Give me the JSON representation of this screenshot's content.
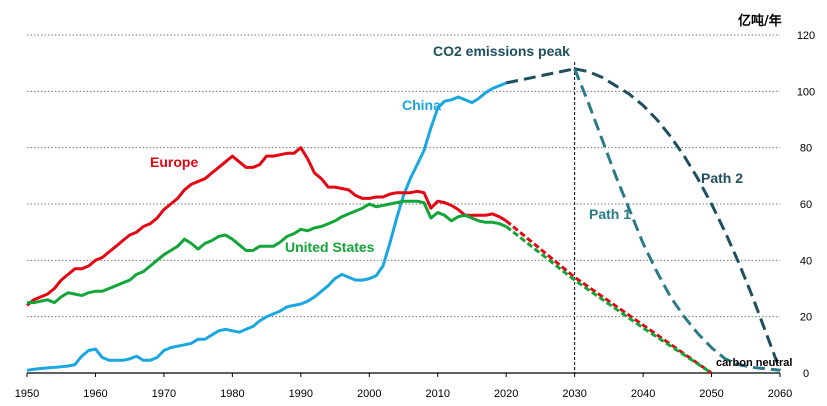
{
  "chart_data": {
    "type": "line",
    "title": "",
    "xlabel": "",
    "ylabel": "亿吨/年",
    "xlim": [
      1950,
      2060
    ],
    "ylim": [
      0,
      120
    ],
    "x_ticks": [
      1950,
      1960,
      1970,
      1980,
      1990,
      2000,
      2010,
      2020,
      2030,
      2040,
      2050,
      2060
    ],
    "y_ticks": [
      0,
      20,
      40,
      60,
      80,
      100,
      120
    ],
    "grid": "horizontal",
    "colors": {
      "china": "#1aa7e0",
      "europe": "#e30613",
      "us": "#13a538",
      "projection": "#1f4e5f",
      "path1": "#2b7a8a"
    },
    "series": [
      {
        "name": "China",
        "key": "china",
        "x": [
          1950,
          1951,
          1952,
          1953,
          1954,
          1955,
          1956,
          1957,
          1958,
          1959,
          1960,
          1961,
          1962,
          1963,
          1964,
          1965,
          1966,
          1967,
          1968,
          1969,
          1970,
          1971,
          1972,
          1973,
          1974,
          1975,
          1976,
          1977,
          1978,
          1979,
          1980,
          1981,
          1982,
          1983,
          1984,
          1985,
          1986,
          1987,
          1988,
          1989,
          1990,
          1991,
          1992,
          1993,
          1994,
          1995,
          1996,
          1997,
          1998,
          1999,
          2000,
          2001,
          2002,
          2003,
          2004,
          2005,
          2006,
          2007,
          2008,
          2009,
          2010,
          2011,
          2012,
          2013,
          2014,
          2015,
          2016,
          2017,
          2018,
          2019,
          2020
        ],
        "values": [
          1,
          1.3,
          1.6,
          1.8,
          2,
          2.2,
          2.5,
          3,
          6,
          8,
          8.5,
          5.5,
          4.5,
          4.5,
          4.5,
          5,
          6,
          4.5,
          4.5,
          5.5,
          8,
          9,
          9.5,
          10,
          10.5,
          12,
          12,
          13.5,
          15,
          15.5,
          15,
          14.5,
          15.5,
          16.5,
          18.5,
          20,
          21,
          22,
          23.5,
          24,
          24.5,
          25.5,
          27,
          29,
          31,
          33.5,
          35,
          34,
          33,
          33,
          33.5,
          34.5,
          38,
          46,
          55,
          63,
          69,
          74,
          79,
          87,
          94,
          96.5,
          97,
          98,
          97,
          96,
          97.5,
          99.5,
          101,
          102,
          103
        ]
      },
      {
        "name": "Europe",
        "key": "europe",
        "x": [
          1950,
          1951,
          1952,
          1953,
          1954,
          1955,
          1956,
          1957,
          1958,
          1959,
          1960,
          1961,
          1962,
          1963,
          1964,
          1965,
          1966,
          1967,
          1968,
          1969,
          1970,
          1971,
          1972,
          1973,
          1974,
          1975,
          1976,
          1977,
          1978,
          1979,
          1980,
          1981,
          1982,
          1983,
          1984,
          1985,
          1986,
          1987,
          1988,
          1989,
          1990,
          1991,
          1992,
          1993,
          1994,
          1995,
          1996,
          1997,
          1998,
          1999,
          2000,
          2001,
          2002,
          2003,
          2004,
          2005,
          2006,
          2007,
          2008,
          2009,
          2010,
          2011,
          2012,
          2013,
          2014,
          2015,
          2016,
          2017,
          2018,
          2019,
          2020
        ],
        "values": [
          24,
          26,
          27,
          28,
          30,
          33,
          35,
          37,
          37,
          38,
          40,
          41,
          43,
          45,
          47,
          49,
          50,
          52,
          53,
          55,
          58,
          60,
          62,
          65,
          67,
          68,
          69,
          71,
          73,
          75,
          77,
          75,
          73,
          73,
          74,
          77,
          77,
          77.5,
          78,
          78,
          80,
          76,
          71,
          69,
          66,
          66,
          65.5,
          65,
          63,
          62,
          62,
          62.5,
          62.5,
          63.5,
          64,
          64,
          64,
          64.5,
          64,
          58.5,
          61,
          60.5,
          59.5,
          58,
          56,
          56,
          56,
          56,
          56.5,
          55.5,
          54
        ]
      },
      {
        "name": "United States",
        "key": "us",
        "x": [
          1950,
          1951,
          1952,
          1953,
          1954,
          1955,
          1956,
          1957,
          1958,
          1959,
          1960,
          1961,
          1962,
          1963,
          1964,
          1965,
          1966,
          1967,
          1968,
          1969,
          1970,
          1971,
          1972,
          1973,
          1974,
          1975,
          1976,
          1977,
          1978,
          1979,
          1980,
          1981,
          1982,
          1983,
          1984,
          1985,
          1986,
          1987,
          1988,
          1989,
          1990,
          1991,
          1992,
          1993,
          1994,
          1995,
          1996,
          1997,
          1998,
          1999,
          2000,
          2001,
          2002,
          2003,
          2004,
          2005,
          2006,
          2007,
          2008,
          2009,
          2010,
          2011,
          2012,
          2013,
          2014,
          2015,
          2016,
          2017,
          2018,
          2019,
          2020
        ],
        "values": [
          25,
          25,
          25.5,
          26,
          25,
          27,
          28.5,
          28,
          27.5,
          28.5,
          29,
          29,
          30,
          31,
          32,
          33,
          35,
          36,
          38,
          40,
          42,
          43.5,
          45,
          47.5,
          46,
          44,
          46,
          47,
          48.5,
          49,
          47.5,
          45.5,
          43.5,
          43.5,
          45,
          45,
          45,
          46.5,
          48.5,
          49.5,
          51,
          50.5,
          51.5,
          52,
          53,
          54,
          55.5,
          56.5,
          57.5,
          58.5,
          60,
          59,
          59.5,
          60,
          60.5,
          61,
          61,
          61,
          60.5,
          55,
          57,
          56,
          54,
          55.5,
          56,
          55,
          54,
          53.5,
          53.5,
          53,
          52
        ]
      },
      {
        "name": "Europe projection",
        "key": "europe",
        "dashed": true,
        "x": [
          2020,
          2030,
          2040,
          2050
        ],
        "values": [
          54,
          34,
          17,
          0
        ]
      },
      {
        "name": "United States projection",
        "key": "us",
        "dashed": true,
        "x": [
          2020,
          2030,
          2040,
          2050
        ],
        "values": [
          52,
          33,
          16,
          0
        ]
      },
      {
        "name": "China to peak",
        "key": "projection",
        "dashed": true,
        "x": [
          2020,
          2022,
          2024,
          2026,
          2028,
          2030
        ],
        "values": [
          103,
          104,
          105,
          106,
          107,
          108
        ]
      },
      {
        "name": "Path 2",
        "key": "projection",
        "dashed": true,
        "x": [
          2030,
          2032,
          2034,
          2036,
          2038,
          2040,
          2042,
          2044,
          2046,
          2048,
          2050,
          2052,
          2054,
          2056,
          2058,
          2060
        ],
        "values": [
          108,
          107,
          105,
          102,
          99,
          95,
          90,
          84,
          77,
          69,
          60,
          50,
          39,
          27,
          14,
          1
        ]
      },
      {
        "name": "Path 1",
        "key": "path1",
        "dashed": true,
        "x": [
          2030,
          2032,
          2034,
          2036,
          2038,
          2040,
          2042,
          2044,
          2046,
          2048,
          2050,
          2052,
          2054,
          2056,
          2058,
          2060
        ],
        "values": [
          108,
          96,
          83,
          70,
          58,
          46,
          36,
          27,
          20,
          14,
          9,
          5,
          3,
          2,
          1.5,
          1
        ]
      }
    ],
    "labels": {
      "china": "China",
      "europe": "Europe",
      "us": "United States",
      "peak": "CO2 emissions peak",
      "path1": "Path 1",
      "path2": "Path 2",
      "carbon_neutral": "carbon neutral"
    },
    "peak_year": 2030
  }
}
